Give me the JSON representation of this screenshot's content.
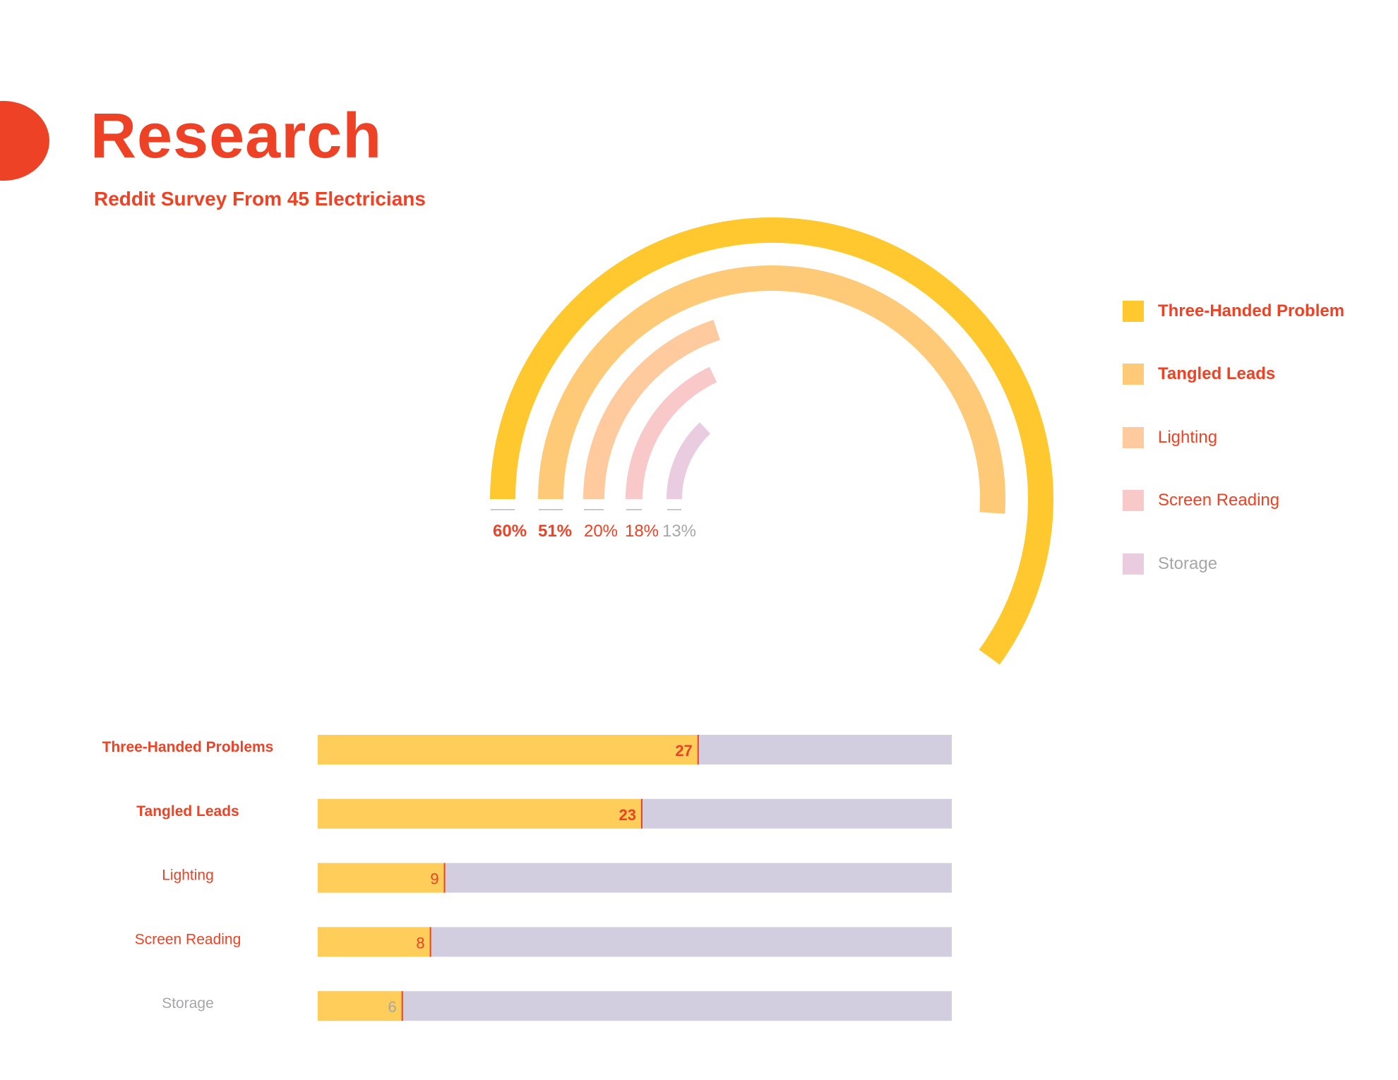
{
  "page": {
    "title": "Research",
    "subtitle": "Reddit Survey From 45 Electricians"
  },
  "colors": {
    "accent": "#EE4226",
    "muted_text": "#A7A7AB",
    "bar_fill": "#FFCD59",
    "bar_track": "#D2CEE0",
    "baseline": "#C9C9CC"
  },
  "chart_data": [
    {
      "type": "radial-bar",
      "series": [
        {
          "name": "Three-Handed Problem",
          "value": 60,
          "label": "60%",
          "color": "#FFC82E",
          "emphasis": "bold"
        },
        {
          "name": "Tangled Leads",
          "value": 51,
          "label": "51%",
          "color": "#FFCA78",
          "emphasis": "bold"
        },
        {
          "name": "Lighting",
          "value": 20,
          "label": "20%",
          "color": "#FFCA9E",
          "emphasis": "normal"
        },
        {
          "name": "Screen Reading",
          "value": 18,
          "label": "18%",
          "color": "#F9C8C9",
          "emphasis": "normal"
        },
        {
          "name": "Storage",
          "value": 13,
          "label": "13%",
          "color": "#EACCE0",
          "emphasis": "muted"
        }
      ],
      "legend_position": "right"
    },
    {
      "type": "bar",
      "orientation": "horizontal",
      "total": 45,
      "categories": [
        "Three-Handed Problems",
        "Tangled Leads",
        "Lighting",
        "Screen Reading",
        "Storage"
      ],
      "values": [
        27,
        23,
        9,
        8,
        6
      ],
      "emphasis": [
        "bold",
        "bold",
        "normal",
        "normal",
        "muted"
      ]
    }
  ]
}
